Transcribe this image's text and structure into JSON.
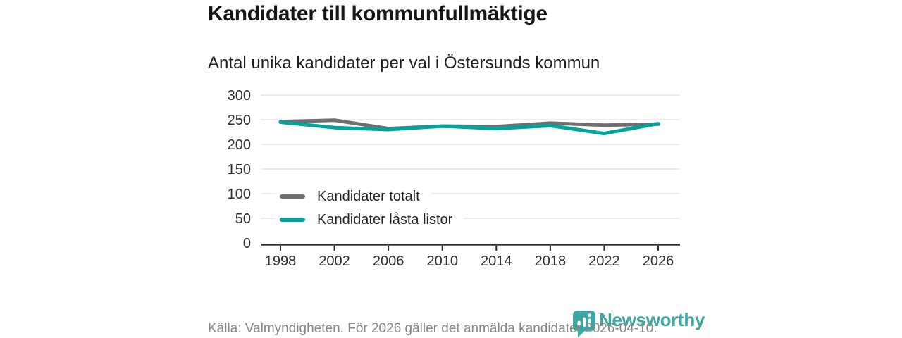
{
  "header": {
    "title": "Kandidater till kommunfullmäktige",
    "subtitle": "Antal unika kandidater per val i Östersunds kommun"
  },
  "chart_data": {
    "type": "line",
    "title": "Kandidater till kommunfullmäktige",
    "subtitle": "Antal unika kandidater per val i Östersunds kommun",
    "x": [
      1998,
      2002,
      2006,
      2010,
      2014,
      2018,
      2022,
      2026
    ],
    "series": [
      {
        "name": "Kandidater totalt",
        "color": "#6e6e73",
        "values": [
          246,
          249,
          232,
          237,
          236,
          243,
          239,
          241
        ]
      },
      {
        "name": "Kandidater låsta listor",
        "color": "#00a49b",
        "values": [
          245,
          234,
          230,
          237,
          232,
          238,
          222,
          242
        ]
      }
    ],
    "xlabel": "",
    "ylabel": "",
    "ylim": [
      0,
      300
    ],
    "yticks": [
      0,
      50,
      100,
      150,
      200,
      250,
      300
    ],
    "grid": "horizontal",
    "legend_position": "inside-bottom-left"
  },
  "footer": {
    "source_text": "Källa: Valmyndigheten. För 2026 gäller det anmälda kandidater 2026-04-10.",
    "brand": {
      "name": "Newsworthy",
      "color": "#3ba7a2",
      "icon": "bar-chart-speech-bubble-icon"
    }
  },
  "colors": {
    "series_total": "#6e6e73",
    "series_locked_lists": "#00a49b",
    "brand_teal": "#3ba7a2",
    "axis": "#333333",
    "gridline": "#e7e7e7",
    "muted_text": "#868686"
  }
}
